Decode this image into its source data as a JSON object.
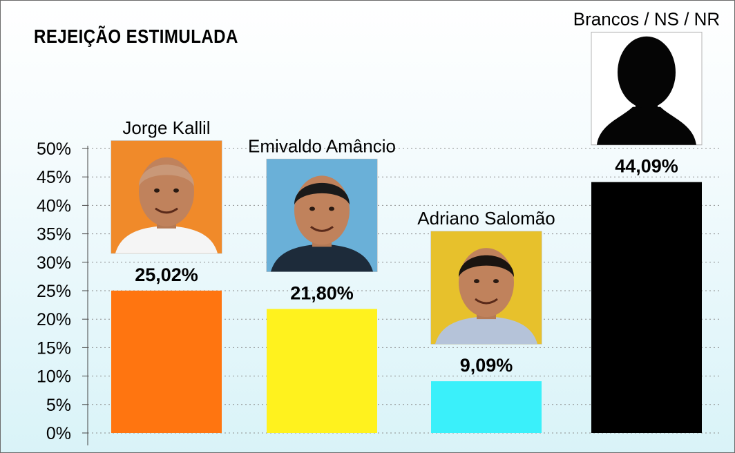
{
  "chart_data": {
    "type": "bar",
    "title": "REJEIÇÃO ESTIMULADA",
    "categories": [
      "Jorge Kallil",
      "Emivaldo Amâncio",
      "Adriano Salomão",
      "Brancos / NS / NR"
    ],
    "values": [
      25.02,
      21.8,
      9.09,
      44.09
    ],
    "data_labels": [
      "25,02%",
      "21,80%",
      "9,09%",
      "44,09%"
    ],
    "colors": [
      "#ff7510",
      "#fff21e",
      "#3af0fa",
      "#000000"
    ],
    "ylim": [
      0,
      50
    ],
    "yticks": [
      0,
      5,
      10,
      15,
      20,
      25,
      30,
      35,
      40,
      45,
      50
    ],
    "ytick_labels": [
      "0%",
      "5%",
      "10%",
      "15%",
      "20%",
      "25%",
      "30%",
      "35%",
      "40%",
      "45%",
      "50%"
    ],
    "grid": true,
    "photo_icons": [
      "person-photo-icon",
      "person-photo-icon",
      "person-photo-icon",
      "silhouette-icon"
    ]
  }
}
